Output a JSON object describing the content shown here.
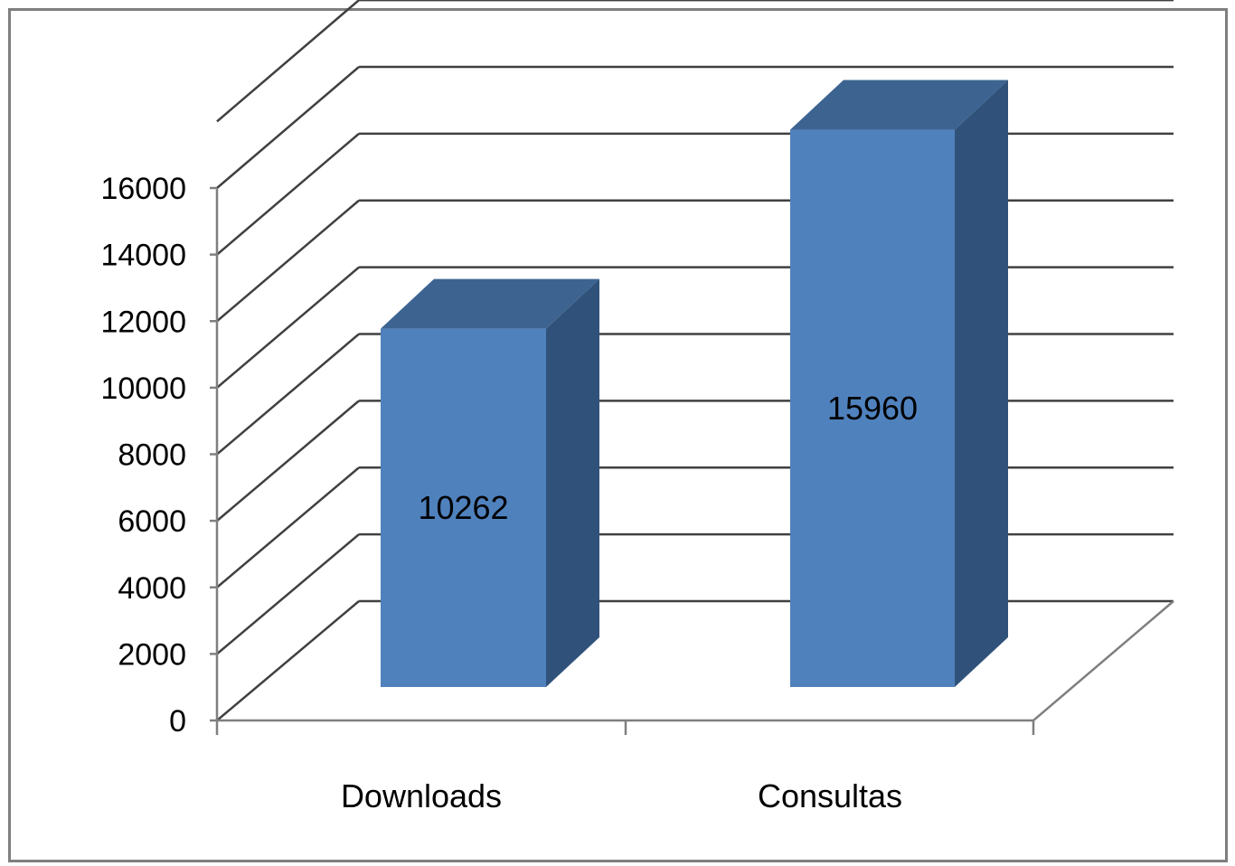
{
  "chart_data": {
    "type": "bar",
    "style": "3d-column",
    "categories": [
      "Downloads",
      "Consultas"
    ],
    "values": [
      10262,
      15960
    ],
    "data_labels": [
      "10262",
      "15960"
    ],
    "ylim": [
      0,
      16000
    ],
    "yticks": [
      0,
      2000,
      4000,
      6000,
      8000,
      10000,
      12000,
      14000,
      16000
    ],
    "ytick_labels": [
      "0",
      "2000",
      "4000",
      "6000",
      "8000",
      "10000",
      "12000",
      "14000",
      "16000"
    ],
    "grid": true,
    "legend": "none",
    "colors": {
      "bar_front": "#4f81bd",
      "bar_side": "#30527a",
      "bar_top": "#3d6491",
      "grid": "#404040",
      "frame": "#7f7f7f"
    }
  }
}
